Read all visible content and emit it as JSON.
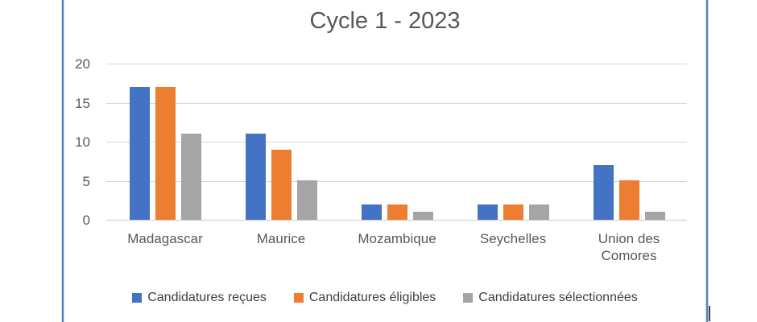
{
  "chart_data": {
    "type": "bar",
    "title": "Cycle 1 - 2023",
    "categories": [
      "Madagascar",
      "Maurice",
      "Mozambique",
      "Seychelles",
      "Union des Comores"
    ],
    "series": [
      {
        "name": "Candidatures reçues",
        "color": "#4472C4",
        "values": [
          17,
          11,
          2,
          2,
          7
        ]
      },
      {
        "name": "Candidatures éligibles",
        "color": "#ED7D31",
        "values": [
          17,
          9,
          2,
          2,
          5
        ]
      },
      {
        "name": "Candidatures sélectionnées",
        "color": "#A5A5A5",
        "values": [
          11,
          5,
          1,
          2,
          1
        ]
      }
    ],
    "y_ticks": [
      0,
      5,
      10,
      15,
      20
    ],
    "ylim": [
      0,
      20
    ],
    "xlabel": "",
    "ylabel": "",
    "grid": true,
    "legend_position": "bottom"
  },
  "palette": {
    "frame_border": "#5B83C0",
    "gridline": "#D6D6D6",
    "axis_line": "#C8C8C8",
    "axis_text": "#595959",
    "title_text": "#575757",
    "legend_text": "#3F3F3F",
    "cursor": "#454545"
  }
}
